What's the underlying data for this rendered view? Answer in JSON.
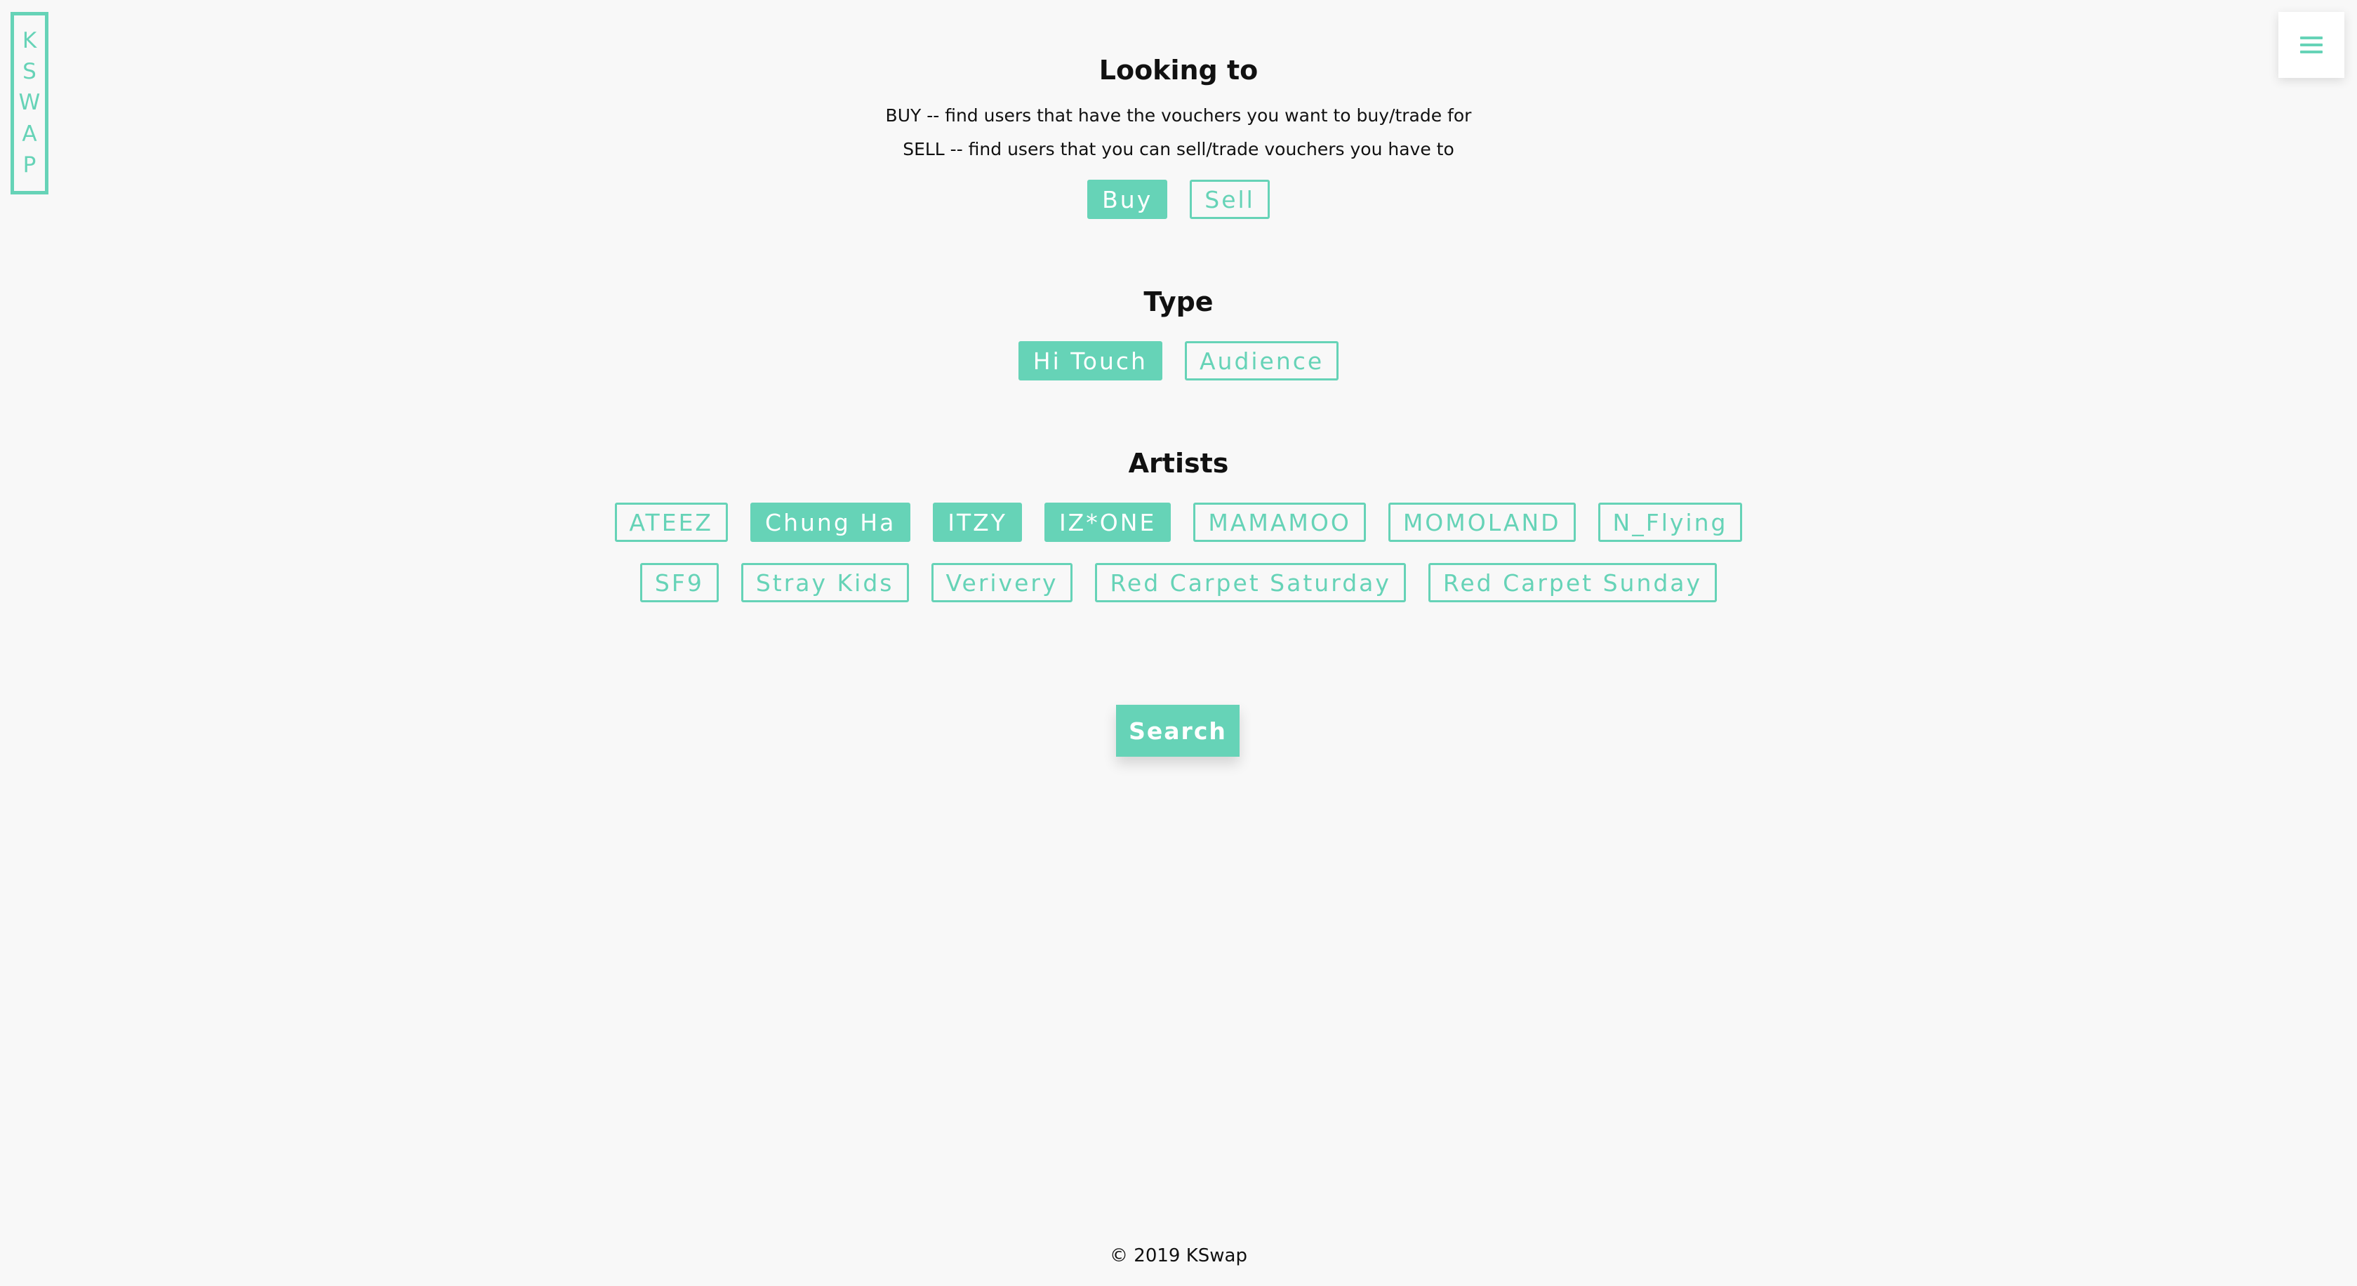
{
  "brand": {
    "logo_letters": [
      "K",
      "S",
      "W",
      "A",
      "P"
    ],
    "accent_color": "#66d3b7",
    "background_color": "#f8f8f8"
  },
  "menu": {
    "icon": "hamburger-menu-icon"
  },
  "looking_to": {
    "title": "Looking to",
    "buy_desc": "BUY -- find users that have the vouchers you want to buy/trade for",
    "sell_desc": "SELL -- find users that you can sell/trade vouchers you have to",
    "options": [
      {
        "label": "Buy",
        "selected": true
      },
      {
        "label": "Sell",
        "selected": false
      }
    ]
  },
  "type": {
    "title": "Type",
    "options": [
      {
        "label": "Hi Touch",
        "selected": true
      },
      {
        "label": "Audience",
        "selected": false
      }
    ]
  },
  "artists": {
    "title": "Artists",
    "row1": [
      {
        "label": "ATEEZ",
        "selected": false
      },
      {
        "label": "Chung Ha",
        "selected": true
      },
      {
        "label": "ITZY",
        "selected": true
      },
      {
        "label": "IZ*ONE",
        "selected": true
      },
      {
        "label": "MAMAMOO",
        "selected": false
      },
      {
        "label": "MOMOLAND",
        "selected": false
      },
      {
        "label": "N_Flying",
        "selected": false
      }
    ],
    "row2": [
      {
        "label": "SF9",
        "selected": false
      },
      {
        "label": "Stray Kids",
        "selected": false
      },
      {
        "label": "Verivery",
        "selected": false
      },
      {
        "label": "Red Carpet Saturday",
        "selected": false
      },
      {
        "label": "Red Carpet Sunday",
        "selected": false
      }
    ]
  },
  "search": {
    "label": "Search"
  },
  "footer": {
    "text": "© 2019 KSwap"
  }
}
